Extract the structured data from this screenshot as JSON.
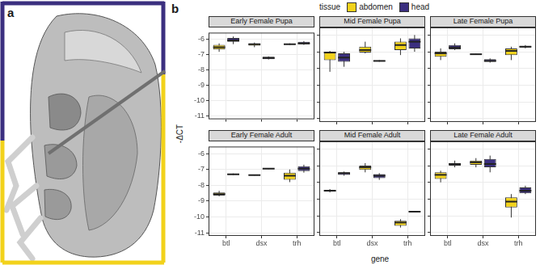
{
  "panel_labels": [
    "a",
    "b"
  ],
  "legend_title": "tissue",
  "x_label": "gene",
  "y_label": "-ΔCT",
  "chart_data": [
    {
      "type": "boxplot",
      "title": "Early Female Pupa",
      "categories": [
        "btl",
        "dsx",
        "trh"
      ],
      "ylim": [
        -11.2,
        -5.55
      ],
      "yticks": [
        -11,
        -10,
        -9,
        -8,
        -7,
        -6
      ],
      "grid": true,
      "tick_labels": "y",
      "series": [
        {
          "name": "abdomen",
          "color": "#f2d21b",
          "values": [
            {
              "min": -6.8,
              "q1": -6.65,
              "median": -6.5,
              "q3": -6.35,
              "max": -6.25
            },
            {
              "min": -6.5,
              "q1": -6.4,
              "median": -6.3,
              "q3": -6.25,
              "max": -6.2
            },
            {
              "min": -6.35,
              "q1": -6.32,
              "median": -6.3,
              "q3": -6.28,
              "max": -6.25
            }
          ]
        },
        {
          "name": "head",
          "color": "#3b2f7f",
          "values": [
            {
              "min": -6.3,
              "q1": -6.15,
              "median": -6.05,
              "q3": -5.9,
              "max": -5.8
            },
            {
              "min": -7.3,
              "q1": -7.28,
              "median": -7.2,
              "q3": -7.12,
              "max": -7.1
            },
            {
              "min": -6.35,
              "q1": -6.3,
              "median": -6.25,
              "q3": -6.15,
              "max": -6.1
            }
          ]
        }
      ]
    },
    {
      "type": "boxplot",
      "title": "Mid Female Pupa",
      "categories": [
        "btl",
        "dsx",
        "trh"
      ],
      "ylim": [
        -11.2,
        -5.55
      ],
      "yticks": [
        -11,
        -10,
        -9,
        -8,
        -7,
        -6
      ],
      "grid": true,
      "tick_labels": false,
      "series": [
        {
          "name": "abdomen",
          "color": "#f2d21b",
          "values": [
            {
              "min": -8.2,
              "q1": -7.5,
              "median": -7.05,
              "q3": -7.0,
              "max": -6.95
            },
            {
              "min": -7.1,
              "q1": -7.05,
              "median": -6.9,
              "q3": -6.7,
              "max": -6.4
            },
            {
              "min": -7.2,
              "q1": -6.9,
              "median": -6.6,
              "q3": -6.4,
              "max": -6.2
            }
          ]
        },
        {
          "name": "head",
          "color": "#3b2f7f",
          "values": [
            {
              "min": -7.9,
              "q1": -7.6,
              "median": -7.35,
              "q3": -7.1,
              "max": -7.0
            },
            {
              "min": -7.6,
              "q1": -7.58,
              "median": -7.55,
              "q3": -7.52,
              "max": -7.5
            },
            {
              "min": -7.0,
              "q1": -6.8,
              "median": -6.4,
              "q3": -6.2,
              "max": -6.0
            }
          ]
        }
      ]
    },
    {
      "type": "boxplot",
      "title": "Late Female Pupa",
      "categories": [
        "btl",
        "dsx",
        "trh"
      ],
      "ylim": [
        -11.2,
        -5.55
      ],
      "yticks": [
        -11,
        -10,
        -9,
        -8,
        -7,
        -6
      ],
      "grid": true,
      "tick_labels": false,
      "series": [
        {
          "name": "abdomen",
          "color": "#f2d21b",
          "values": [
            {
              "min": -7.5,
              "q1": -7.3,
              "median": -7.1,
              "q3": -7.0,
              "max": -6.8
            },
            {
              "min": -7.18,
              "q1": -7.17,
              "median": -7.15,
              "q3": -7.13,
              "max": -7.12
            },
            {
              "min": -7.5,
              "q1": -7.2,
              "median": -6.95,
              "q3": -6.8,
              "max": -6.7
            }
          ]
        },
        {
          "name": "head",
          "color": "#3b2f7f",
          "values": [
            {
              "min": -6.9,
              "q1": -6.85,
              "median": -6.75,
              "q3": -6.6,
              "max": -6.5
            },
            {
              "min": -7.65,
              "q1": -7.6,
              "median": -7.55,
              "q3": -7.45,
              "max": -7.4
            },
            {
              "min": -6.8,
              "q1": -6.75,
              "median": -6.7,
              "q3": -6.65,
              "max": -6.6
            }
          ]
        }
      ]
    },
    {
      "type": "boxplot",
      "title": "Early Female Adult",
      "categories": [
        "btl",
        "dsx",
        "trh"
      ],
      "ylim": [
        -11.2,
        -5.55
      ],
      "yticks": [
        -11,
        -10,
        -9,
        -8,
        -7,
        -6
      ],
      "grid": true,
      "tick_labels": true,
      "series": [
        {
          "name": "abdomen",
          "color": "#f2d21b",
          "values": [
            {
              "min": -8.7,
              "q1": -8.65,
              "median": -8.55,
              "q3": -8.45,
              "max": -8.35
            },
            {
              "min": -7.38,
              "q1": -7.37,
              "median": -7.35,
              "q3": -7.33,
              "max": -7.32
            },
            {
              "min": -7.8,
              "q1": -7.65,
              "median": -7.4,
              "q3": -7.2,
              "max": -7.0
            }
          ]
        },
        {
          "name": "head",
          "color": "#3b2f7f",
          "values": [
            {
              "min": -7.35,
              "q1": -7.33,
              "median": -7.3,
              "q3": -7.27,
              "max": -7.25
            },
            {
              "min": -6.98,
              "q1": -6.97,
              "median": -6.95,
              "q3": -6.93,
              "max": -6.92
            },
            {
              "min": -7.2,
              "q1": -7.1,
              "median": -6.95,
              "q3": -6.8,
              "max": -6.7
            }
          ]
        }
      ]
    },
    {
      "type": "boxplot",
      "title": "Mid Female Adult",
      "categories": [
        "btl",
        "dsx",
        "trh"
      ],
      "ylim": [
        -11.2,
        -5.55
      ],
      "yticks": [
        -11,
        -10,
        -9,
        -8,
        -7,
        -6
      ],
      "grid": true,
      "tick_labels": "x",
      "series": [
        {
          "name": "abdomen",
          "color": "#f2d21b",
          "values": [
            {
              "min": -8.6,
              "q1": -8.55,
              "median": -8.5,
              "q3": -8.45,
              "max": -8.4
            },
            {
              "min": -7.4,
              "q1": -7.25,
              "median": -7.1,
              "q3": -7.0,
              "max": -6.85
            },
            {
              "min": -10.7,
              "q1": -10.6,
              "median": -10.4,
              "q3": -10.3,
              "max": -10.2
            }
          ]
        },
        {
          "name": "head",
          "color": "#3b2f7f",
          "values": [
            {
              "min": -7.6,
              "q1": -7.55,
              "median": -7.45,
              "q3": -7.4,
              "max": -7.35
            },
            {
              "min": -7.85,
              "q1": -7.75,
              "median": -7.6,
              "q3": -7.5,
              "max": -7.45
            },
            {
              "min": -9.78,
              "q1": -9.77,
              "median": -9.75,
              "q3": -9.73,
              "max": -9.72
            }
          ]
        }
      ]
    },
    {
      "type": "boxplot",
      "title": "Late Female Adult",
      "categories": [
        "btl",
        "dsx",
        "trh"
      ],
      "ylim": [
        -11.2,
        -5.55
      ],
      "yticks": [
        -11,
        -10,
        -9,
        -8,
        -7,
        -6
      ],
      "grid": true,
      "tick_labels": "x",
      "series": [
        {
          "name": "abdomen",
          "color": "#f2d21b",
          "values": [
            {
              "min": -8.0,
              "q1": -7.8,
              "median": -7.55,
              "q3": -7.4,
              "max": -7.3
            },
            {
              "min": -7.1,
              "q1": -6.95,
              "median": -6.8,
              "q3": -6.7,
              "max": -6.55
            },
            {
              "min": -10.1,
              "q1": -9.5,
              "median": -9.15,
              "q3": -8.9,
              "max": -8.7
            }
          ]
        },
        {
          "name": "head",
          "color": "#3b2f7f",
          "values": [
            {
              "min": -7.1,
              "q1": -7.0,
              "median": -6.9,
              "q3": -6.85,
              "max": -6.7
            },
            {
              "min": -7.4,
              "q1": -7.1,
              "median": -6.9,
              "q3": -6.6,
              "max": -6.4
            },
            {
              "min": -8.7,
              "q1": -8.65,
              "median": -8.5,
              "q3": -8.3,
              "max": -8.2
            }
          ]
        }
      ]
    }
  ]
}
